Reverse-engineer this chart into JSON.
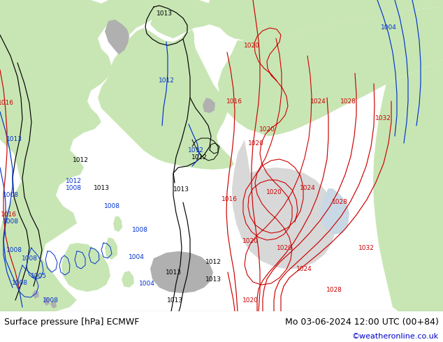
{
  "title_left": "Surface pressure [hPa] ECMWF",
  "title_right": "Mo 03-06-2024 12:00 UTC (00+84)",
  "copyright": "©weatheronline.co.uk",
  "fig_width": 6.34,
  "fig_height": 4.9,
  "dpi": 100,
  "footer_text_color": "#000000",
  "footer_copy_color": "#0000cc",
  "footer_fontsize": 9,
  "sea_color": "#c8dde8",
  "land_color_light": "#c8e6b4",
  "land_color_green": "#9ecf7a",
  "coast_color": "#888888",
  "black": "#000000",
  "red": "#cc0000",
  "blue": "#0033cc",
  "label_fontsize": 6.5,
  "contour_lw": 0.85
}
